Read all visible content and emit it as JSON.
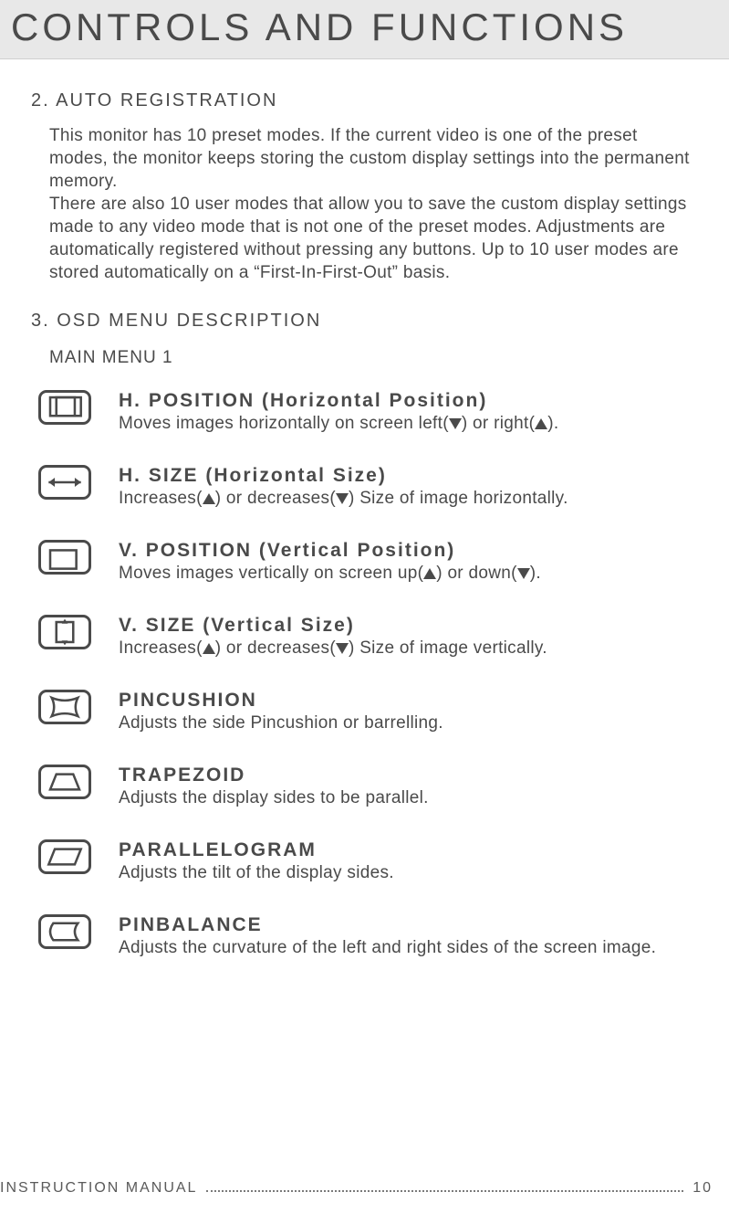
{
  "colors": {
    "text": "#4a4a4a",
    "title_bg": "#e8e8e8",
    "page_bg": "#ffffff",
    "dots": "#7a7a7a"
  },
  "typography": {
    "title_fontsize": 42,
    "title_letter_spacing": 4,
    "heading_fontsize": 20,
    "body_fontsize": 19,
    "item_title_fontsize": 21,
    "footer_fontsize": 16
  },
  "title": "CONTROLS AND FUNCTIONS",
  "section1": {
    "heading": "2. AUTO REGISTRATION",
    "body": "This monitor has 10 preset modes. If the current video is one of the preset modes, the monitor keeps storing the custom display settings into the permanent memory.\nThere are also 10 user modes that allow you to save the custom display settings made to any video mode that is not one of the preset modes. Adjustments are automatically registered without pressing any buttons. Up to 10 user modes are stored automatically on a “First-In-First-Out” basis."
  },
  "section2": {
    "heading": "3. OSD MENU DESCRIPTION",
    "subheading": "MAIN MENU 1",
    "items": [
      {
        "icon": "hposition",
        "title": "H. POSITION (Horizontal Position)",
        "desc_pre": "Moves images horizontally on screen left(",
        "desc_mid": ") or right(",
        "desc_post": ").",
        "tri1": "down",
        "tri2": "up"
      },
      {
        "icon": "hsize",
        "title": "H. SIZE (Horizontal Size)",
        "desc_pre": "Increases(",
        "desc_mid": ") or decreases(",
        "desc_post": ") Size of image horizontally.",
        "tri1": "up",
        "tri2": "down"
      },
      {
        "icon": "vposition",
        "title": "V. POSITION (Vertical Position)",
        "desc_pre": "Moves images vertically on screen up(",
        "desc_mid": ") or down(",
        "desc_post": ").",
        "tri1": "up",
        "tri2": "down"
      },
      {
        "icon": "vsize",
        "title": "V. SIZE (Vertical Size)",
        "desc_pre": "Increases(",
        "desc_mid": ") or decreases(",
        "desc_post": ") Size of image vertically.",
        "tri1": "up",
        "tri2": "down"
      },
      {
        "icon": "pincushion",
        "title": "PINCUSHION",
        "desc": "Adjusts the side Pincushion or barrelling."
      },
      {
        "icon": "trapezoid",
        "title": "TRAPEZOID",
        "desc": "Adjusts the display sides to be parallel."
      },
      {
        "icon": "parallelogram",
        "title": "PARALLELOGRAM",
        "desc": "Adjusts the tilt of the display sides."
      },
      {
        "icon": "pinbalance",
        "title": "PINBALANCE",
        "desc": "Adjusts the curvature of the left and right sides of the screen image."
      }
    ]
  },
  "footer": {
    "label": "INSTRUCTION  MANUAL",
    "page": "10"
  }
}
